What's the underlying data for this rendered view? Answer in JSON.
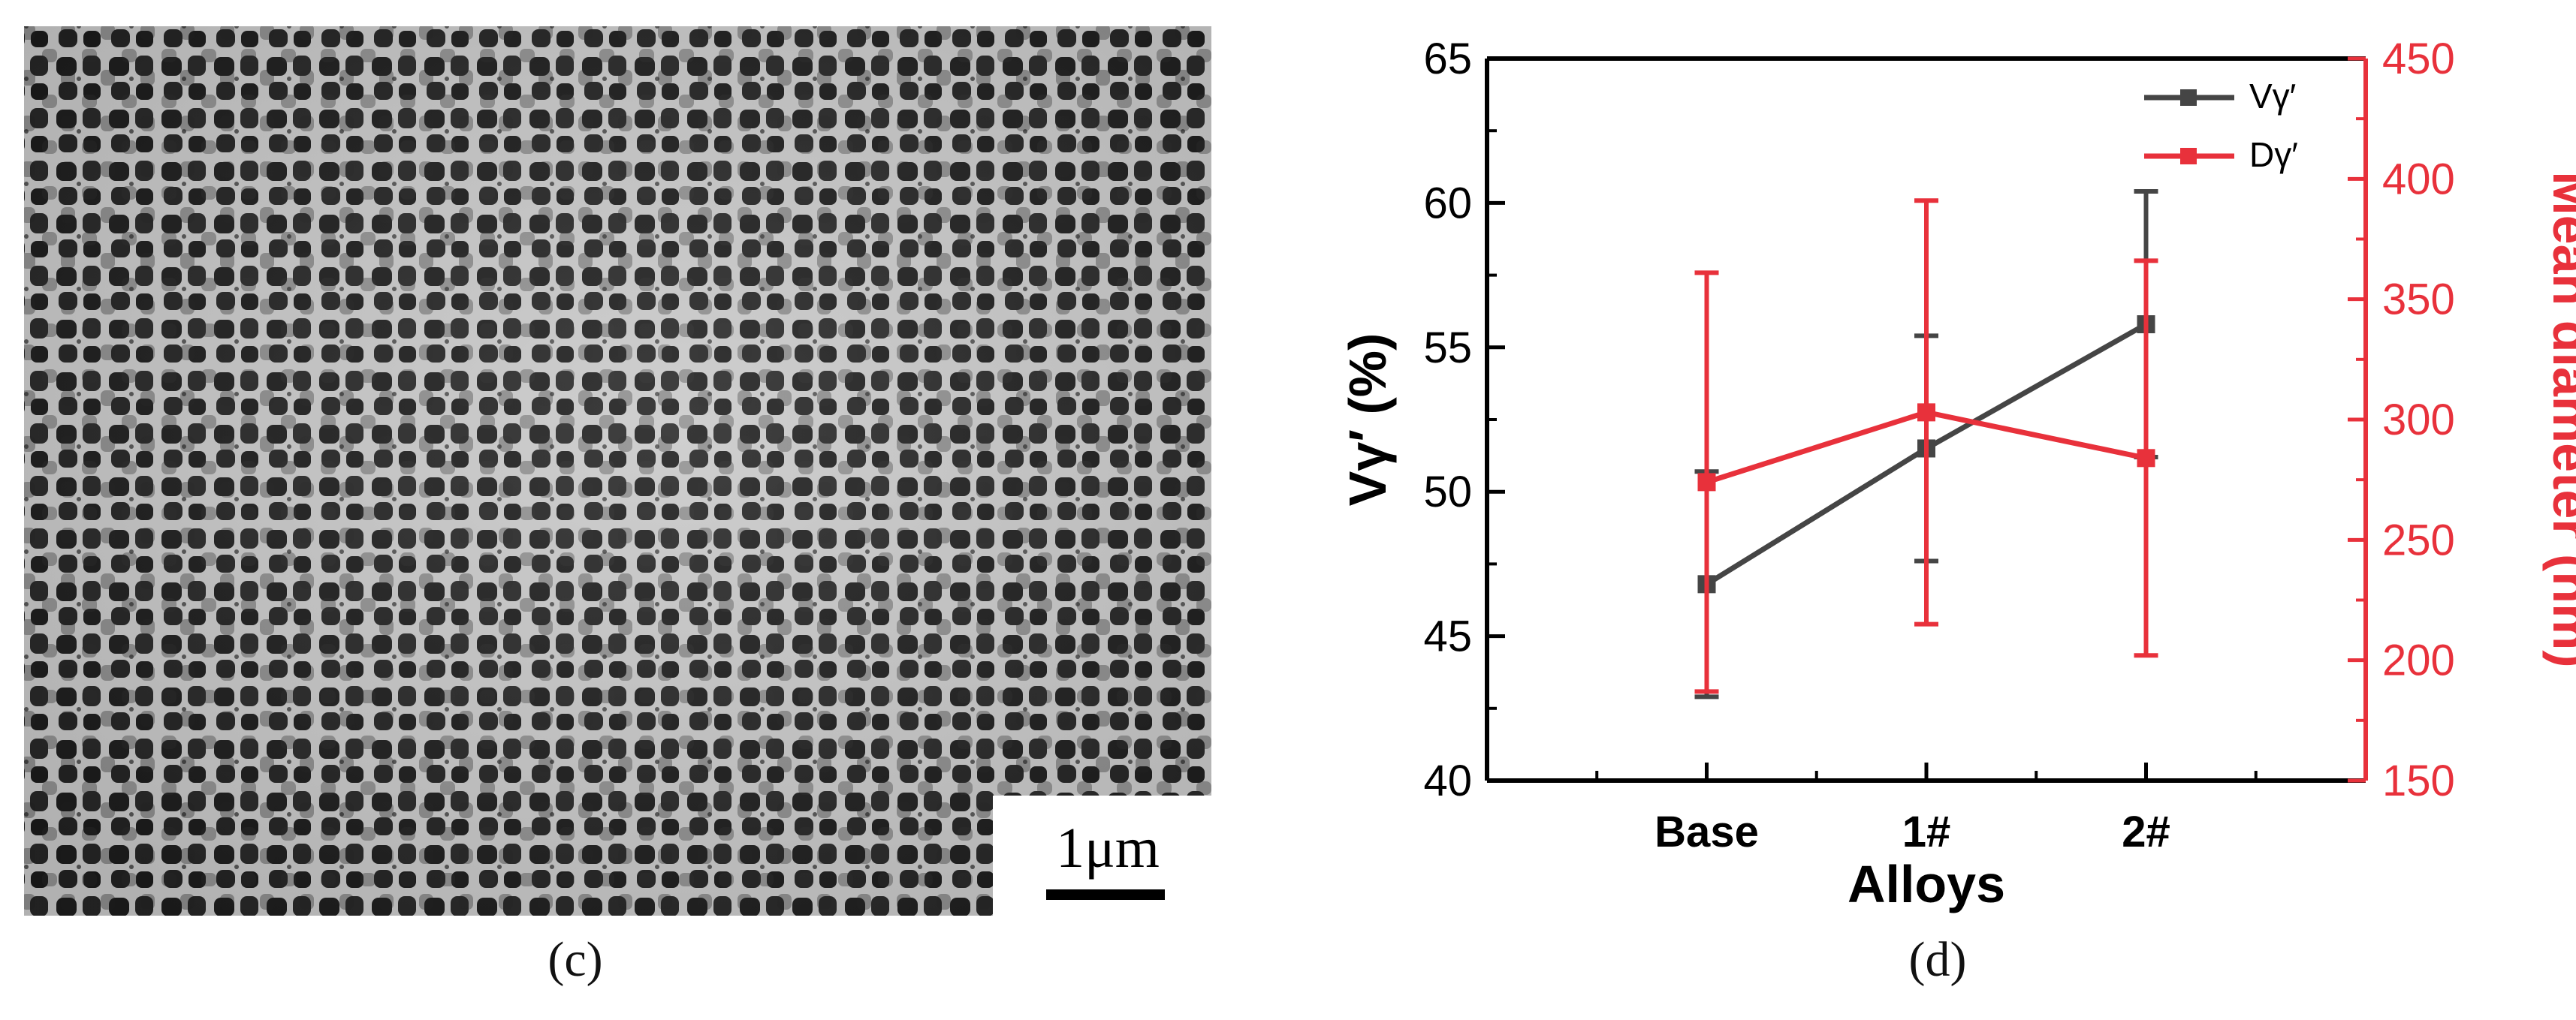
{
  "panel_c": {
    "label": "(c)",
    "scale_bar_label": "1μm"
  },
  "panel_d": {
    "label": "(d)"
  },
  "chart_data": {
    "type": "line",
    "xlabel": "Alloys",
    "ylabel_left": "Vγ′ (%)",
    "ylabel_right": "Mean diameter (nm)",
    "categories": [
      "Base",
      "1#",
      "2#"
    ],
    "ylim_left": [
      40,
      65
    ],
    "yticks_left": [
      40,
      45,
      50,
      55,
      60,
      65
    ],
    "ylim_right": [
      150,
      450
    ],
    "yticks_right": [
      150,
      200,
      250,
      300,
      350,
      400,
      450
    ],
    "legend_position": "top-right",
    "grid": false,
    "series": [
      {
        "name": "Vγ′",
        "axis": "left",
        "color": "#454545",
        "marker": "square",
        "values": [
          46.8,
          51.5,
          55.8
        ],
        "error": [
          3.9,
          3.9,
          4.6
        ]
      },
      {
        "name": "Dγ′",
        "axis": "right",
        "color": "#e8313b",
        "marker": "square",
        "values": [
          274,
          303,
          284
        ],
        "error": [
          87,
          88,
          82
        ]
      }
    ]
  }
}
